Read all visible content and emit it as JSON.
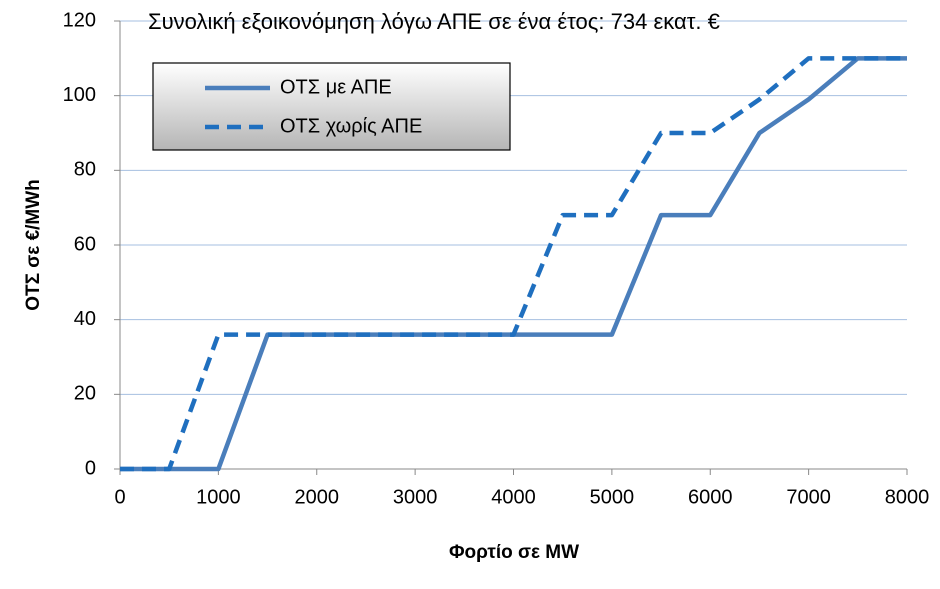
{
  "chart_data": {
    "type": "line",
    "title": "Συνολική εξοικονόμηση λόγω ΑΠΕ σε ένα έτος: 734 εκατ. €",
    "x_label": "Φορτίο σε MW",
    "y_label": "ΟΤΣ σε €/MWh",
    "x": [
      0,
      500,
      1000,
      1500,
      2000,
      2500,
      3000,
      3500,
      4000,
      4500,
      5000,
      5500,
      6000,
      6500,
      7000,
      7500,
      8000
    ],
    "series": [
      {
        "name": "ΟΤΣ με ΑΠΕ",
        "color": "#4a7ebb",
        "dash": "solid",
        "values": [
          0,
          0,
          0,
          36,
          36,
          36,
          36,
          36,
          36,
          36,
          36,
          68,
          68,
          90,
          99,
          110,
          110
        ]
      },
      {
        "name": "ΟΤΣ χωρίς ΑΠΕ",
        "color": "#1f6fbf",
        "dash": "dashed",
        "values": [
          0,
          0,
          36,
          36,
          36,
          36,
          36,
          36,
          36,
          68,
          68,
          90,
          90,
          99,
          110,
          110,
          110
        ]
      }
    ],
    "xlim": [
      0,
      8000
    ],
    "xticks": [
      0,
      1000,
      2000,
      3000,
      4000,
      5000,
      6000,
      7000,
      8000
    ],
    "ylim": [
      0,
      120
    ],
    "yticks": [
      0,
      20,
      40,
      60,
      80,
      100,
      120
    ],
    "grid": true,
    "legend": "upper left"
  }
}
